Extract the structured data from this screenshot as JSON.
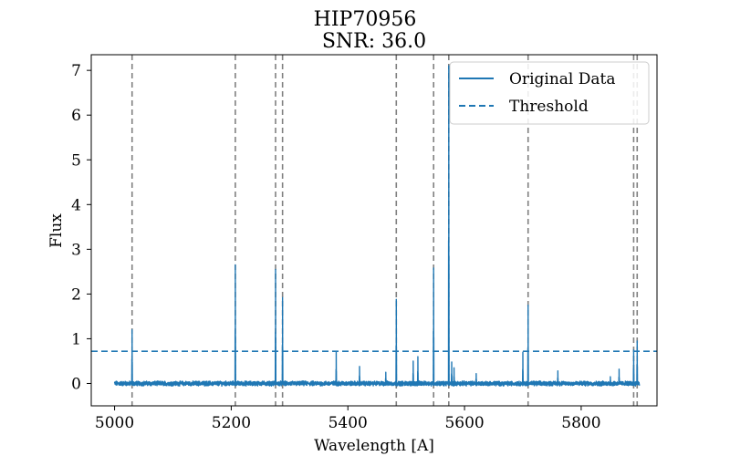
{
  "chart_data": {
    "type": "line",
    "title": "HIP70956",
    "subtitle": "SNR: 36.0",
    "xlabel": "Wavelength [A]",
    "ylabel": "Flux",
    "xlim": [
      4960,
      5930
    ],
    "ylim": [
      -0.5,
      7.35
    ],
    "xticks": [
      5000,
      5200,
      5400,
      5600,
      5800
    ],
    "yticks": [
      0,
      1,
      2,
      3,
      4,
      5,
      6,
      7
    ],
    "grid": false,
    "legend_position": "top-right",
    "colors": {
      "series": "#1f77b4",
      "vlines": "#808080"
    },
    "series": [
      {
        "name": "Original Data",
        "style": "solid",
        "noise_range": [
          5000,
          5900
        ],
        "noise_amplitude": 0.07,
        "peaks": [
          {
            "x": 5030,
            "y": 1.2
          },
          {
            "x": 5207,
            "y": 2.65
          },
          {
            "x": 5276,
            "y": 2.55
          },
          {
            "x": 5288,
            "y": 1.92
          },
          {
            "x": 5380,
            "y": 0.7
          },
          {
            "x": 5420,
            "y": 0.38
          },
          {
            "x": 5465,
            "y": 0.25
          },
          {
            "x": 5483,
            "y": 1.88
          },
          {
            "x": 5512,
            "y": 0.5
          },
          {
            "x": 5520,
            "y": 0.6
          },
          {
            "x": 5547,
            "y": 2.58
          },
          {
            "x": 5573,
            "y": 7.1
          },
          {
            "x": 5578,
            "y": 0.48
          },
          {
            "x": 5582,
            "y": 0.35
          },
          {
            "x": 5620,
            "y": 0.22
          },
          {
            "x": 5700,
            "y": 0.7
          },
          {
            "x": 5709,
            "y": 1.75
          },
          {
            "x": 5760,
            "y": 0.28
          },
          {
            "x": 5850,
            "y": 0.15
          },
          {
            "x": 5865,
            "y": 0.32
          },
          {
            "x": 5890,
            "y": 0.75
          },
          {
            "x": 5896,
            "y": 0.95
          }
        ]
      },
      {
        "name": "Threshold",
        "style": "dashed",
        "y": 0.72
      }
    ],
    "vlines": [
      5030,
      5207,
      5276,
      5288,
      5483,
      5547,
      5573,
      5709,
      5890,
      5896
    ]
  }
}
